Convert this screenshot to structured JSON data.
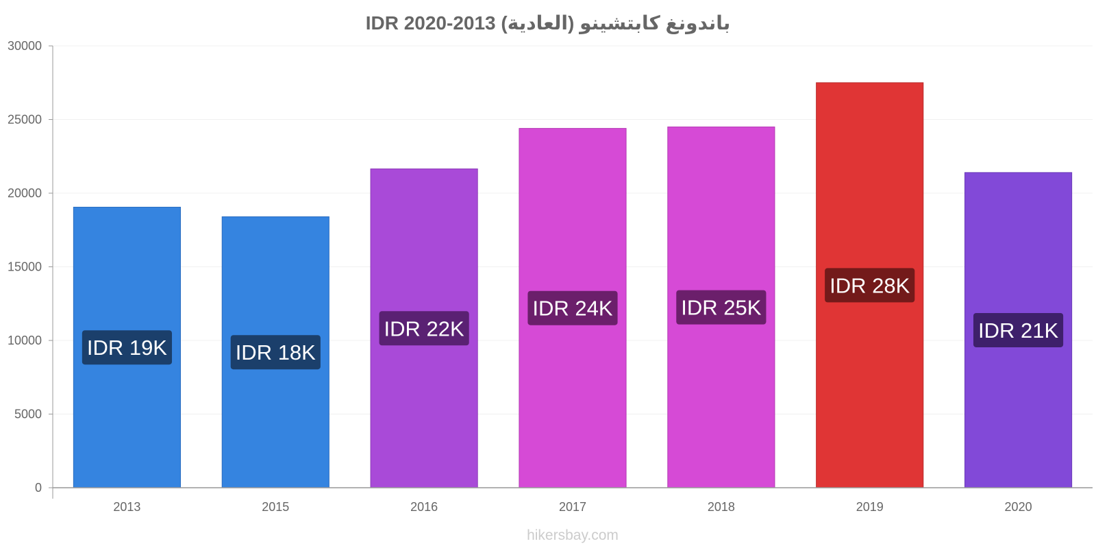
{
  "footer": "hikersbay.com",
  "chart_data": {
    "type": "bar",
    "title": "باندونغ كابتشينو (العادية) IDR 2020-2013",
    "xlabel": "",
    "ylabel": "",
    "ylim": [
      0,
      30000
    ],
    "yticks": [
      0,
      5000,
      10000,
      15000,
      20000,
      25000,
      30000
    ],
    "grid": true,
    "categories": [
      "2013",
      "2015",
      "2016",
      "2017",
      "2018",
      "2019",
      "2020"
    ],
    "values": [
      19050,
      18400,
      21650,
      24400,
      24500,
      27500,
      21400
    ],
    "data_labels": [
      "IDR 19K",
      "IDR 18K",
      "IDR 22K",
      "IDR 24K",
      "IDR 25K",
      "IDR 28K",
      "IDR 21K"
    ],
    "bar_colors": [
      "#3584e0",
      "#3584e0",
      "#a94ad8",
      "#d64ad6",
      "#d64ad6",
      "#e03535",
      "#8249d8"
    ],
    "bar_border_colors": [
      "#2a6cc0",
      "#2a6cc0",
      "#8e3bb8",
      "#b33ab3",
      "#b33ab3",
      "#b82a2a",
      "#6a39b8"
    ],
    "label_bg_colors": [
      "#1b3f6b",
      "#1b3f6b",
      "#5a2173",
      "#6b1f6b",
      "#6b1f6b",
      "#731a1a",
      "#3e206b"
    ]
  }
}
